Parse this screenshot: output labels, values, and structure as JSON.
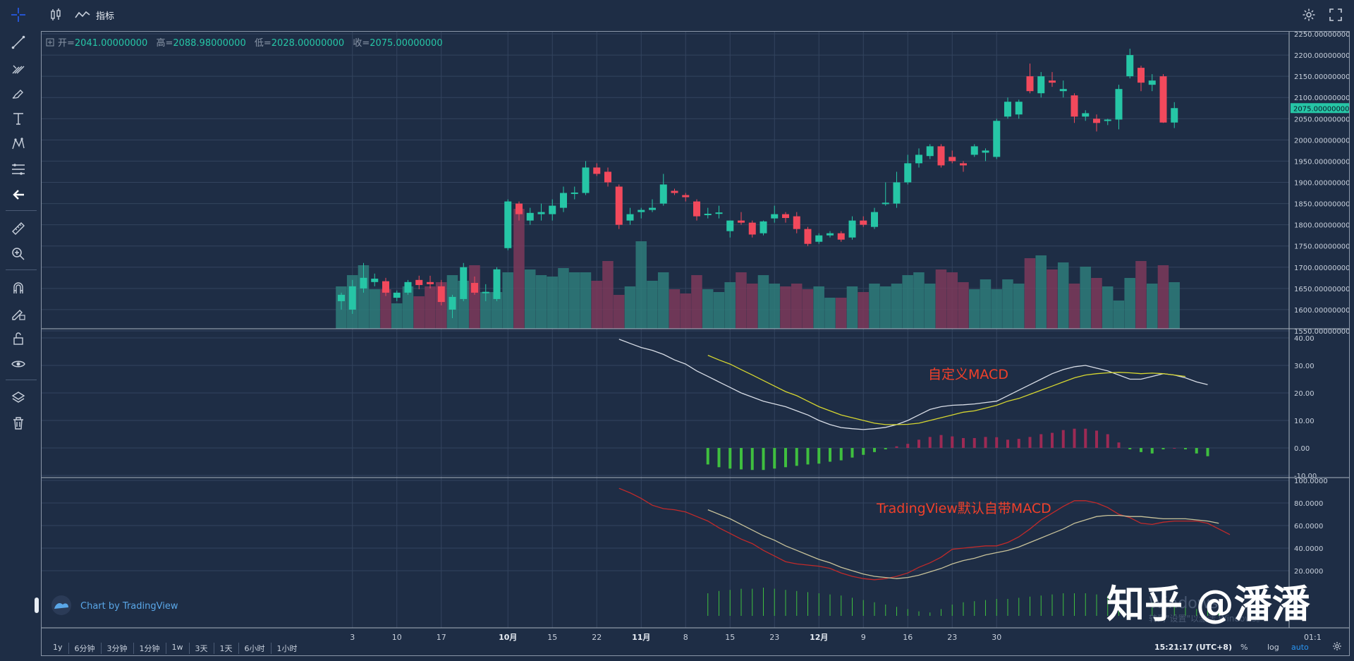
{
  "toolbar": {
    "indicators_label": "指标"
  },
  "legend": {
    "open_label": "开=",
    "open_value": "2041.00000000",
    "high_label": "高=",
    "high_value": "2088.98000000",
    "low_label": "低=",
    "low_value": "2028.00000000",
    "close_label": "收=",
    "close_value": "2075.00000000"
  },
  "price_axis": {
    "ticks": [
      "2250.00000000",
      "2200.00000000",
      "2150.00000000",
      "2100.00000000",
      "2050.00000000",
      "2000.00000000",
      "1950.00000000",
      "1900.00000000",
      "1850.00000000",
      "1800.00000000",
      "1750.00000000",
      "1700.00000000",
      "1650.00000000",
      "1600.00000000",
      "1550.00000000"
    ],
    "last_price": "2075.00000000"
  },
  "macd1_axis": {
    "ticks": [
      "40.00",
      "30.00",
      "20.00",
      "10.00",
      "0.00",
      "-10.00"
    ]
  },
  "macd2_axis": {
    "ticks": [
      "100.0000",
      "80.0000",
      "60.0000",
      "40.0000",
      "20.0000"
    ]
  },
  "time_axis": {
    "labels": [
      "3",
      "10",
      "17",
      "10月",
      "15",
      "22",
      "11月",
      "8",
      "15",
      "23",
      "12月",
      "9",
      "16",
      "23",
      "30"
    ],
    "end_label": "01:1"
  },
  "annotations": {
    "custom_macd": "自定义MACD",
    "tv_macd": "TradingView默认自带MACD"
  },
  "branding": {
    "chart_by": "Chart by TradingView",
    "watermark": "知乎 @潘潘",
    "windows_line1": "Windows",
    "windows_line2": "转到\"设置\"以激活 Windows。"
  },
  "bottom_bar": {
    "timeframes": [
      "1y",
      "6分钟",
      "3分钟",
      "1分钟",
      "1w",
      "3天",
      "1天",
      "6小时",
      "1小时"
    ],
    "clock": "15:21:17 (UTC+8)",
    "percent": "%",
    "log": "log",
    "auto": "auto"
  },
  "colors": {
    "bg": "#1e2d45",
    "up": "#26c6a6",
    "down": "#f2495c",
    "grid": "#33445e",
    "macd_white": "#d8dde6",
    "macd_yellow": "#d6d630",
    "hist_green": "#3fbf3f",
    "hist_red": "#9c2a54",
    "tv_red": "#c22a2a",
    "tv_tan": "#c8c29a",
    "annotation": "#f0402a",
    "accent": "#2962ff"
  },
  "chart_data": [
    {
      "type": "candlestick",
      "title": "",
      "ylim": [
        1550,
        2250
      ],
      "candles": [
        {
          "o": 1620,
          "h": 1640,
          "l": 1600,
          "c": 1635
        },
        {
          "o": 1600,
          "h": 1670,
          "l": 1590,
          "c": 1655
        },
        {
          "o": 1650,
          "h": 1710,
          "l": 1640,
          "c": 1675
        },
        {
          "o": 1665,
          "h": 1685,
          "l": 1655,
          "c": 1673
        },
        {
          "o": 1667,
          "h": 1675,
          "l": 1632,
          "c": 1640
        },
        {
          "o": 1628,
          "h": 1645,
          "l": 1620,
          "c": 1640
        },
        {
          "o": 1640,
          "h": 1670,
          "l": 1635,
          "c": 1665
        },
        {
          "o": 1670,
          "h": 1680,
          "l": 1648,
          "c": 1658
        },
        {
          "o": 1665,
          "h": 1680,
          "l": 1650,
          "c": 1660
        },
        {
          "o": 1655,
          "h": 1670,
          "l": 1610,
          "c": 1618
        },
        {
          "o": 1600,
          "h": 1635,
          "l": 1580,
          "c": 1630
        },
        {
          "o": 1625,
          "h": 1710,
          "l": 1620,
          "c": 1700
        },
        {
          "o": 1663,
          "h": 1678,
          "l": 1635,
          "c": 1640
        },
        {
          "o": 1640,
          "h": 1660,
          "l": 1620,
          "c": 1642
        },
        {
          "o": 1625,
          "h": 1700,
          "l": 1620,
          "c": 1695
        },
        {
          "o": 1745,
          "h": 1860,
          "l": 1740,
          "c": 1855
        },
        {
          "o": 1850,
          "h": 1855,
          "l": 1810,
          "c": 1825
        },
        {
          "o": 1810,
          "h": 1840,
          "l": 1800,
          "c": 1828
        },
        {
          "o": 1825,
          "h": 1850,
          "l": 1810,
          "c": 1830
        },
        {
          "o": 1825,
          "h": 1860,
          "l": 1810,
          "c": 1845
        },
        {
          "o": 1840,
          "h": 1890,
          "l": 1830,
          "c": 1875
        },
        {
          "o": 1873,
          "h": 1890,
          "l": 1860,
          "c": 1876
        },
        {
          "o": 1875,
          "h": 1950,
          "l": 1870,
          "c": 1935
        },
        {
          "o": 1935,
          "h": 1945,
          "l": 1915,
          "c": 1920
        },
        {
          "o": 1925,
          "h": 1935,
          "l": 1890,
          "c": 1900
        },
        {
          "o": 1890,
          "h": 1895,
          "l": 1790,
          "c": 1800
        },
        {
          "o": 1810,
          "h": 1840,
          "l": 1800,
          "c": 1825
        },
        {
          "o": 1830,
          "h": 1840,
          "l": 1815,
          "c": 1835
        },
        {
          "o": 1835,
          "h": 1860,
          "l": 1830,
          "c": 1840
        },
        {
          "o": 1850,
          "h": 1920,
          "l": 1845,
          "c": 1895
        },
        {
          "o": 1880,
          "h": 1885,
          "l": 1870,
          "c": 1875
        },
        {
          "o": 1870,
          "h": 1875,
          "l": 1855,
          "c": 1865
        },
        {
          "o": 1855,
          "h": 1860,
          "l": 1810,
          "c": 1820
        },
        {
          "o": 1825,
          "h": 1840,
          "l": 1815,
          "c": 1826
        },
        {
          "o": 1828,
          "h": 1845,
          "l": 1815,
          "c": 1829
        },
        {
          "o": 1785,
          "h": 1810,
          "l": 1770,
          "c": 1810
        },
        {
          "o": 1810,
          "h": 1830,
          "l": 1800,
          "c": 1805
        },
        {
          "o": 1805,
          "h": 1810,
          "l": 1770,
          "c": 1777
        },
        {
          "o": 1780,
          "h": 1810,
          "l": 1775,
          "c": 1808
        },
        {
          "o": 1815,
          "h": 1845,
          "l": 1805,
          "c": 1825
        },
        {
          "o": 1825,
          "h": 1830,
          "l": 1805,
          "c": 1816
        },
        {
          "o": 1820,
          "h": 1830,
          "l": 1780,
          "c": 1790
        },
        {
          "o": 1790,
          "h": 1795,
          "l": 1750,
          "c": 1755
        },
        {
          "o": 1760,
          "h": 1780,
          "l": 1755,
          "c": 1775
        },
        {
          "o": 1775,
          "h": 1785,
          "l": 1770,
          "c": 1780
        },
        {
          "o": 1780,
          "h": 1785,
          "l": 1760,
          "c": 1765
        },
        {
          "o": 1770,
          "h": 1820,
          "l": 1765,
          "c": 1810
        },
        {
          "o": 1810,
          "h": 1820,
          "l": 1795,
          "c": 1800
        },
        {
          "o": 1795,
          "h": 1840,
          "l": 1790,
          "c": 1830
        },
        {
          "o": 1850,
          "h": 1900,
          "l": 1845,
          "c": 1852
        },
        {
          "o": 1850,
          "h": 1925,
          "l": 1840,
          "c": 1900
        },
        {
          "o": 1900,
          "h": 1965,
          "l": 1895,
          "c": 1945
        },
        {
          "o": 1945,
          "h": 1980,
          "l": 1935,
          "c": 1965
        },
        {
          "o": 1962,
          "h": 1990,
          "l": 1955,
          "c": 1985
        },
        {
          "o": 1985,
          "h": 1990,
          "l": 1935,
          "c": 1940
        },
        {
          "o": 1960,
          "h": 1975,
          "l": 1945,
          "c": 1950
        },
        {
          "o": 1945,
          "h": 1950,
          "l": 1925,
          "c": 1940
        },
        {
          "o": 1965,
          "h": 1990,
          "l": 1960,
          "c": 1985
        },
        {
          "o": 1970,
          "h": 1980,
          "l": 1950,
          "c": 1975
        },
        {
          "o": 1960,
          "h": 2050,
          "l": 1955,
          "c": 2045
        },
        {
          "o": 2055,
          "h": 2100,
          "l": 2050,
          "c": 2090
        },
        {
          "o": 2060,
          "h": 2095,
          "l": 2050,
          "c": 2090
        },
        {
          "o": 2150,
          "h": 2180,
          "l": 2110,
          "c": 2115
        },
        {
          "o": 2110,
          "h": 2160,
          "l": 2100,
          "c": 2150
        },
        {
          "o": 2140,
          "h": 2160,
          "l": 2125,
          "c": 2135
        },
        {
          "o": 2115,
          "h": 2140,
          "l": 2100,
          "c": 2120
        },
        {
          "o": 2105,
          "h": 2110,
          "l": 2040,
          "c": 2055
        },
        {
          "o": 2055,
          "h": 2070,
          "l": 2045,
          "c": 2063
        },
        {
          "o": 2050,
          "h": 2060,
          "l": 2020,
          "c": 2040
        },
        {
          "o": 2045,
          "h": 2050,
          "l": 2035,
          "c": 2048
        },
        {
          "o": 2048,
          "h": 2130,
          "l": 2025,
          "c": 2120
        },
        {
          "o": 2150,
          "h": 2215,
          "l": 2145,
          "c": 2200
        },
        {
          "o": 2170,
          "h": 2175,
          "l": 2115,
          "c": 2135
        },
        {
          "o": 2130,
          "h": 2155,
          "l": 2115,
          "c": 2140
        },
        {
          "o": 2150,
          "h": 2155,
          "l": 2040,
          "c": 2041
        },
        {
          "o": 2041,
          "h": 2089,
          "l": 2028,
          "c": 2075
        }
      ]
    },
    {
      "type": "bar",
      "title": "",
      "values": [
        30,
        38,
        45,
        28,
        28,
        18,
        30,
        23,
        30,
        33,
        38,
        34,
        45,
        26,
        26,
        40,
        85,
        42,
        38,
        37,
        43,
        40,
        40,
        34,
        48,
        24,
        30,
        62,
        34,
        40,
        28,
        25,
        38,
        28,
        26,
        33,
        40,
        32,
        38,
        32,
        30,
        32,
        28,
        30,
        22,
        22,
        30,
        26,
        32,
        30,
        32,
        38,
        40,
        32,
        42,
        40,
        33,
        28,
        35,
        28,
        35,
        32,
        50,
        52,
        42,
        47,
        32,
        44,
        36,
        30,
        20,
        36,
        48,
        32,
        45,
        33
      ],
      "ylim": [
        0,
        100
      ]
    },
    {
      "type": "line",
      "title": "自定义MACD",
      "ylim": [
        -10,
        40
      ],
      "series": [
        {
          "values": [
            null,
            null,
            null,
            null,
            null,
            null,
            null,
            null,
            null,
            null,
            null,
            null,
            null,
            null,
            null,
            null,
            null,
            null,
            null,
            null,
            null,
            null,
            null,
            null,
            null,
            39.5,
            38,
            36.5,
            35.5,
            34,
            32,
            30.5,
            28,
            26,
            24,
            22,
            20,
            18.5,
            17,
            16,
            15,
            13.5,
            12,
            10,
            8.5,
            7.4,
            7,
            6.7,
            7,
            7.5,
            8.5,
            10,
            12,
            14,
            15,
            15.5,
            15.7,
            16,
            16.5,
            17,
            19,
            21,
            23,
            25,
            27,
            28.5,
            29.5,
            30,
            29,
            28,
            26.5,
            25,
            25,
            26,
            27,
            26.5,
            25.5,
            24,
            23
          ]
        },
        {
          "values": [
            null,
            null,
            null,
            null,
            null,
            null,
            null,
            null,
            null,
            null,
            null,
            null,
            null,
            null,
            null,
            null,
            null,
            null,
            null,
            null,
            null,
            null,
            null,
            null,
            null,
            null,
            null,
            null,
            null,
            null,
            null,
            null,
            null,
            33.7,
            32,
            30.5,
            28.5,
            26.5,
            24.5,
            22.5,
            20.5,
            19,
            17,
            15,
            13.5,
            12,
            11,
            10,
            9,
            8.5,
            8.5,
            8.6,
            9,
            10,
            11,
            12,
            13,
            13.5,
            14.5,
            15.5,
            17,
            18,
            19.5,
            21,
            22.5,
            24,
            25.5,
            26.5,
            27,
            27.3,
            27.5,
            27.3,
            27,
            27.2,
            27,
            26.5,
            26
          ]
        },
        {
          "values": [
            null,
            null,
            null,
            null,
            null,
            null,
            null,
            null,
            null,
            null,
            null,
            null,
            null,
            null,
            null,
            null,
            null,
            null,
            null,
            null,
            null,
            null,
            null,
            null,
            null,
            null,
            null,
            null,
            null,
            null,
            null,
            null,
            null,
            -6,
            -7,
            -7.5,
            -7.8,
            -8,
            -8,
            -7.5,
            -7,
            -6.5,
            -6,
            -5.7,
            -5,
            -4.5,
            -3.5,
            -2.5,
            -1.5,
            -0.5,
            0.6,
            1.5,
            3,
            4,
            4.7,
            4.2,
            3.6,
            3.6,
            4,
            3.9,
            3,
            3.3,
            4,
            5,
            5.5,
            6.5,
            7,
            7,
            6.3,
            5,
            2,
            -0.5,
            -1.5,
            -2,
            -0.5,
            0,
            -0.5,
            -2,
            -3
          ]
        }
      ]
    },
    {
      "type": "line",
      "title": "TradingView默认自带MACD",
      "ylim": [
        0,
        100
      ],
      "series": [
        {
          "values": [
            null,
            null,
            null,
            null,
            null,
            null,
            null,
            null,
            null,
            null,
            null,
            null,
            null,
            null,
            null,
            null,
            null,
            null,
            null,
            null,
            null,
            null,
            null,
            null,
            null,
            93,
            89,
            84,
            78,
            75,
            74,
            72,
            68,
            64,
            58,
            53,
            48,
            44,
            38,
            33,
            28,
            26,
            25,
            24,
            22,
            18,
            15,
            13,
            12,
            13,
            15,
            18,
            23,
            27,
            32,
            39,
            40,
            41,
            42,
            42,
            45,
            50,
            57,
            65,
            71,
            77,
            82,
            82,
            80,
            76,
            70,
            67,
            62,
            61,
            63,
            64,
            64,
            64,
            62,
            57,
            52
          ]
        },
        {
          "values": [
            null,
            null,
            null,
            null,
            null,
            null,
            null,
            null,
            null,
            null,
            null,
            null,
            null,
            null,
            null,
            null,
            null,
            null,
            null,
            null,
            null,
            null,
            null,
            null,
            null,
            null,
            null,
            null,
            null,
            null,
            null,
            null,
            null,
            74,
            70,
            66,
            61,
            56,
            51,
            47,
            42,
            38,
            34,
            30,
            27,
            23,
            20,
            17,
            15,
            14,
            13,
            14,
            16,
            19,
            22,
            26,
            29,
            31,
            34,
            36,
            38,
            41,
            45,
            49,
            53,
            57,
            62,
            65,
            68,
            69,
            69,
            68,
            68,
            67,
            66,
            66,
            66,
            65,
            64,
            62
          ]
        },
        {
          "values": [
            null,
            null,
            null,
            null,
            null,
            null,
            null,
            null,
            null,
            null,
            null,
            null,
            null,
            null,
            null,
            null,
            null,
            null,
            null,
            null,
            null,
            null,
            null,
            null,
            null,
            null,
            null,
            null,
            null,
            null,
            null,
            null,
            null,
            20,
            22,
            23,
            24,
            24,
            25,
            24,
            23,
            22,
            21,
            20,
            19,
            18,
            16,
            14,
            12,
            10,
            8,
            6,
            4,
            3,
            6,
            10,
            12,
            13,
            14,
            15,
            15,
            16,
            17,
            18,
            19,
            20,
            20,
            20,
            19,
            18,
            17,
            15,
            13,
            12,
            10,
            9,
            8,
            6,
            5,
            4
          ]
        }
      ]
    }
  ]
}
